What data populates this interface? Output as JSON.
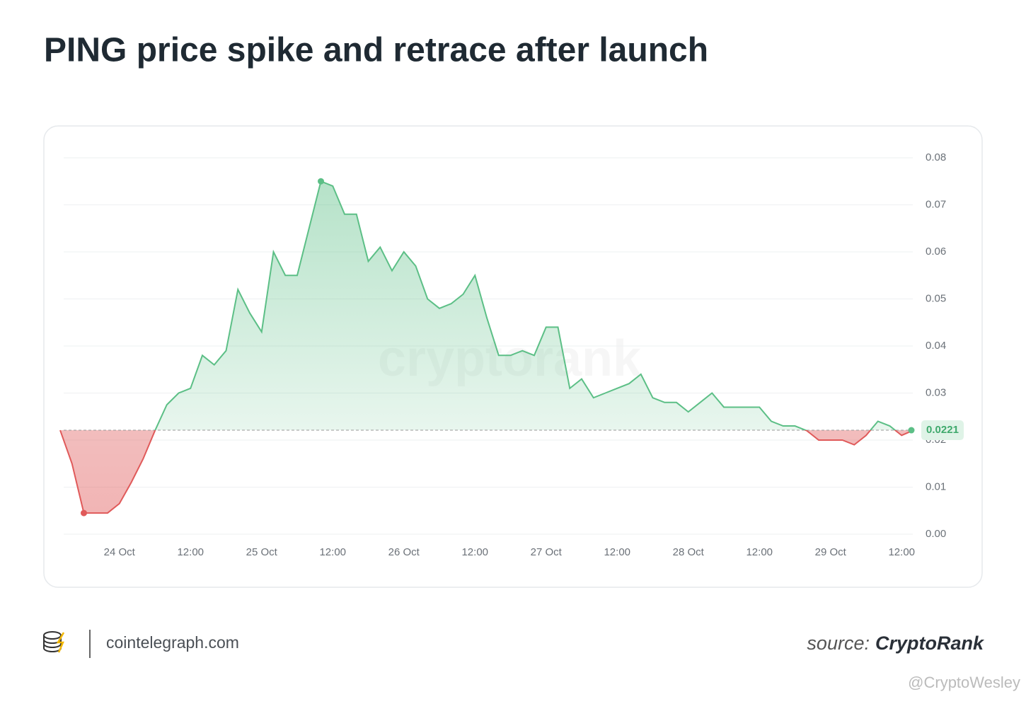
{
  "chart_data": {
    "type": "line",
    "title": "PING price spike and retrace after launch",
    "x": [
      "23 Oct 14:00",
      "23 Oct 16:00",
      "23 Oct 18:00",
      "23 Oct 20:00",
      "23 Oct 22:00",
      "24 Oct 00:00",
      "24 Oct 02:00",
      "24 Oct 04:00",
      "24 Oct 06:00",
      "24 Oct 08:00",
      "24 Oct 10:00",
      "24 Oct 12:00",
      "24 Oct 14:00",
      "24 Oct 16:00",
      "24 Oct 18:00",
      "24 Oct 20:00",
      "24 Oct 22:00",
      "25 Oct 00:00",
      "25 Oct 02:00",
      "25 Oct 04:00",
      "25 Oct 06:00",
      "25 Oct 08:00",
      "25 Oct 10:00",
      "25 Oct 12:00",
      "25 Oct 14:00",
      "25 Oct 16:00",
      "25 Oct 18:00",
      "25 Oct 20:00",
      "25 Oct 22:00",
      "26 Oct 00:00",
      "26 Oct 02:00",
      "26 Oct 04:00",
      "26 Oct 06:00",
      "26 Oct 08:00",
      "26 Oct 10:00",
      "26 Oct 12:00",
      "26 Oct 14:00",
      "26 Oct 16:00",
      "26 Oct 18:00",
      "26 Oct 20:00",
      "26 Oct 22:00",
      "27 Oct 00:00",
      "27 Oct 02:00",
      "27 Oct 04:00",
      "27 Oct 06:00",
      "27 Oct 08:00",
      "27 Oct 10:00",
      "27 Oct 12:00",
      "27 Oct 14:00",
      "27 Oct 16:00",
      "27 Oct 18:00",
      "27 Oct 20:00",
      "27 Oct 22:00",
      "28 Oct 00:00",
      "28 Oct 02:00",
      "28 Oct 04:00",
      "28 Oct 06:00",
      "28 Oct 08:00",
      "28 Oct 10:00",
      "28 Oct 12:00",
      "28 Oct 14:00",
      "28 Oct 16:00",
      "28 Oct 18:00",
      "28 Oct 20:00",
      "28 Oct 22:00",
      "29 Oct 00:00",
      "29 Oct 02:00",
      "29 Oct 04:00",
      "29 Oct 06:00",
      "29 Oct 08:00",
      "29 Oct 10:00",
      "29 Oct 12:00",
      "29 Oct 14:00"
    ],
    "values": [
      0.0221,
      0.015,
      0.0045,
      0.0045,
      0.0045,
      0.0065,
      0.011,
      0.016,
      0.022,
      0.0275,
      0.03,
      0.031,
      0.038,
      0.036,
      0.039,
      0.052,
      0.047,
      0.043,
      0.06,
      0.055,
      0.055,
      0.065,
      0.075,
      0.074,
      0.068,
      0.068,
      0.058,
      0.061,
      0.056,
      0.06,
      0.057,
      0.05,
      0.048,
      0.049,
      0.051,
      0.055,
      0.046,
      0.038,
      0.038,
      0.039,
      0.038,
      0.044,
      0.044,
      0.031,
      0.033,
      0.029,
      0.03,
      0.031,
      0.032,
      0.034,
      0.029,
      0.028,
      0.028,
      0.026,
      0.028,
      0.03,
      0.027,
      0.027,
      0.027,
      0.027,
      0.024,
      0.023,
      0.023,
      0.022,
      0.02,
      0.02,
      0.02,
      0.019,
      0.021,
      0.024,
      0.023,
      0.021,
      0.0221
    ],
    "up_color": "#5cbf86",
    "down_color": "#e05a5a",
    "ylim": [
      0,
      0.08
    ],
    "yticks": [
      {
        "value": 0,
        "label": "0.00"
      },
      0.01,
      0.02,
      0.03,
      0.04,
      0.05,
      0.06,
      0.07,
      0.08
    ],
    "xticks": [
      {
        "value": "24 Oct 00:00",
        "label": "24 Oct"
      },
      {
        "value": "24 Oct 12:00",
        "label": "12:00"
      },
      {
        "value": "25 Oct 00:00",
        "label": "25 Oct"
      },
      {
        "value": "25 Oct 12:00",
        "label": "12:00"
      },
      {
        "value": "26 Oct 00:00",
        "label": "26 Oct"
      },
      {
        "value": "26 Oct 12:00",
        "label": "12:00"
      },
      {
        "value": "27 Oct 00:00",
        "label": "27 Oct"
      },
      {
        "value": "27 Oct 12:00",
        "label": "12:00"
      },
      {
        "value": "28 Oct 00:00",
        "label": "28 Oct"
      },
      {
        "value": "28 Oct 12:00",
        "label": "12:00"
      },
      {
        "value": "29 Oct 00:00",
        "label": "29 Oct"
      },
      {
        "value": "29 Oct 12:00",
        "label": "12:00"
      }
    ],
    "grid": true,
    "watermark": "cryptorank"
  },
  "footer": {
    "site": "cointelegraph.com",
    "source_prefix": "source:",
    "source": "CryptoRank",
    "credit": "@CryptoWesley"
  }
}
